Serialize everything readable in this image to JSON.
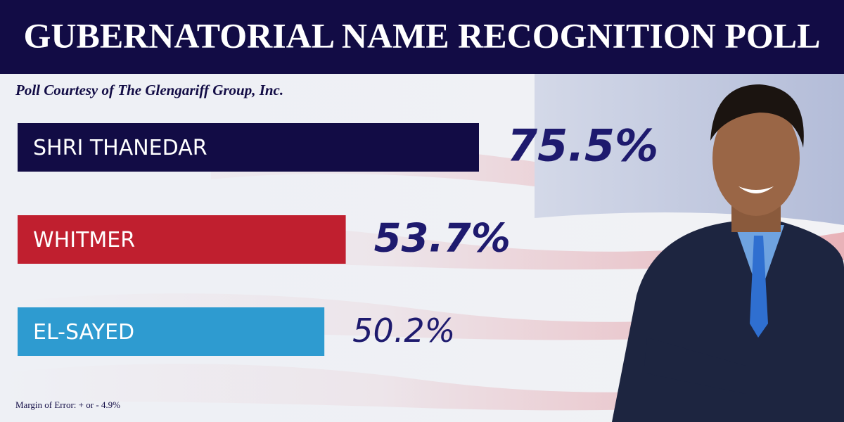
{
  "chart_data": {
    "type": "bar",
    "orientation": "horizontal",
    "title": "GUBERNATORIAL NAME RECOGNITION POLL",
    "subtitle": "Poll Courtesy of The Glengariff Group, Inc.",
    "categories": [
      "SHRI THANEDAR",
      "WHITMER",
      "EL-SAYED"
    ],
    "values": [
      75.5,
      53.7,
      50.2
    ],
    "value_labels": [
      "75.5%",
      "53.7%",
      "50.2%"
    ],
    "colors": [
      "#120c45",
      "#c01f2f",
      "#2e9bd0"
    ],
    "note": "Margin of Error: + or - 4.9%"
  }
}
